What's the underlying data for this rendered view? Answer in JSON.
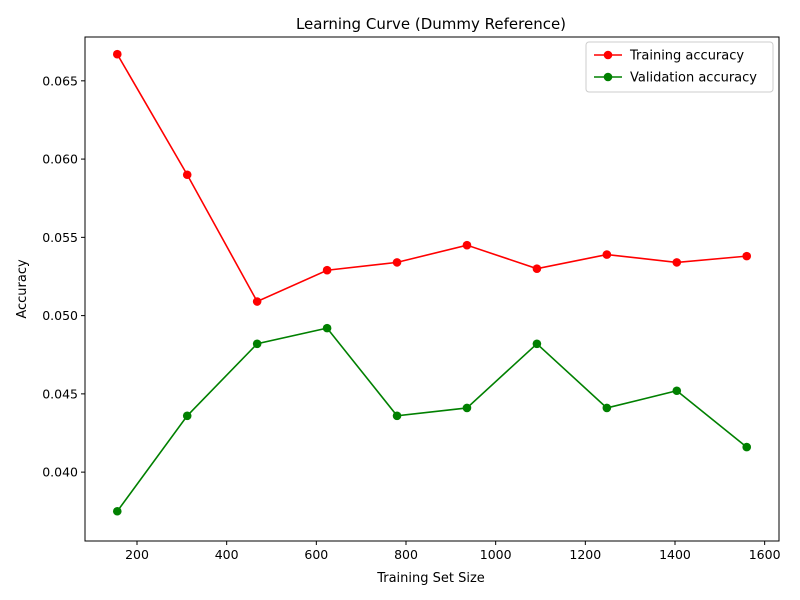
{
  "chart_data": {
    "type": "line",
    "title": "Learning Curve (Dummy Reference)",
    "xlabel": "Training Set Size",
    "ylabel": "Accuracy",
    "xlim": [
      84,
      1632
    ],
    "ylim": [
      0.0356,
      0.0678
    ],
    "xticks": [
      200,
      400,
      600,
      800,
      1000,
      1200,
      1400,
      1600
    ],
    "yticks": [
      0.04,
      0.045,
      0.05,
      0.055,
      0.06,
      0.065
    ],
    "xtick_labels": [
      "200",
      "400",
      "600",
      "800",
      "1000",
      "1200",
      "1400",
      "1600"
    ],
    "ytick_labels": [
      "0.040",
      "0.045",
      "0.050",
      "0.055",
      "0.060",
      "0.065"
    ],
    "grid": false,
    "legend_position": "top-right",
    "x": [
      156,
      312,
      468,
      624,
      780,
      936,
      1092,
      1248,
      1404,
      1560
    ],
    "series": [
      {
        "name": "Training accuracy",
        "color": "#ff0000",
        "values": [
          0.0667,
          0.059,
          0.0509,
          0.0529,
          0.0534,
          0.0545,
          0.053,
          0.0539,
          0.0534,
          0.0538
        ]
      },
      {
        "name": "Validation accuracy",
        "color": "#008000",
        "values": [
          0.0375,
          0.0436,
          0.0482,
          0.0492,
          0.0436,
          0.0441,
          0.0482,
          0.0441,
          0.0452,
          0.0416
        ]
      }
    ]
  }
}
